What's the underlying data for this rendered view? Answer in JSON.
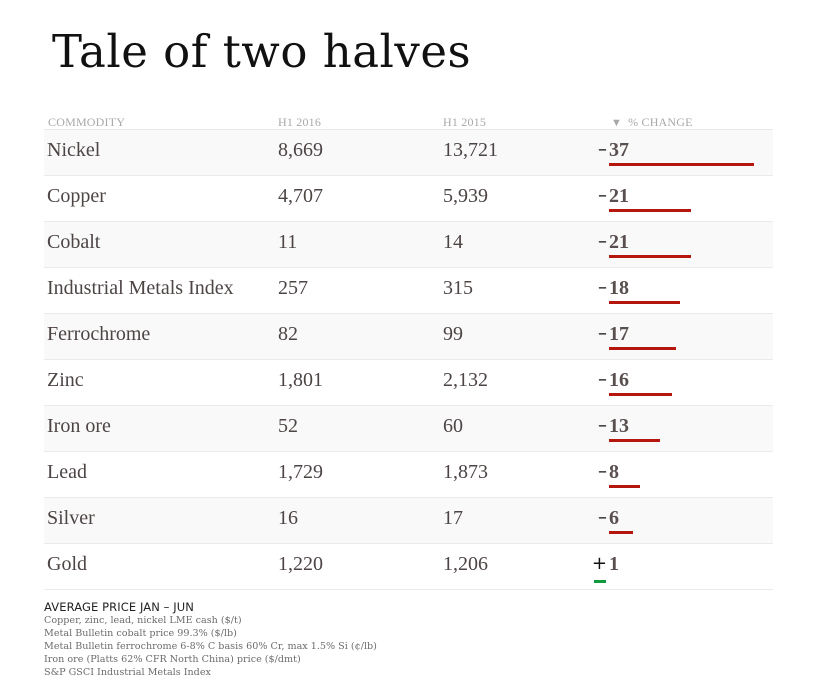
{
  "title": "Tale of two halves",
  "table": {
    "headers": {
      "commodity": "COMMODITY",
      "h1_2016": "H1 2016",
      "h1_2015": "H1 2015",
      "change": "% CHANGE",
      "sort_icon": "▼"
    },
    "rows": [
      {
        "commodity": "Nickel",
        "h1_2016": "8,669",
        "h1_2015": "13,721",
        "sign": "–",
        "change": "37"
      },
      {
        "commodity": "Copper",
        "h1_2016": "4,707",
        "h1_2015": "5,939",
        "sign": "–",
        "change": "21"
      },
      {
        "commodity": "Cobalt",
        "h1_2016": "11",
        "h1_2015": "14",
        "sign": "–",
        "change": "21"
      },
      {
        "commodity": "Industrial Metals Index",
        "h1_2016": "257",
        "h1_2015": "315",
        "sign": "–",
        "change": "18"
      },
      {
        "commodity": "Ferrochrome",
        "h1_2016": "82",
        "h1_2015": "99",
        "sign": "–",
        "change": "17"
      },
      {
        "commodity": "Zinc",
        "h1_2016": "1,801",
        "h1_2015": "2,132",
        "sign": "–",
        "change": "16"
      },
      {
        "commodity": "Iron ore",
        "h1_2016": "52",
        "h1_2015": "60",
        "sign": "–",
        "change": "13"
      },
      {
        "commodity": "Lead",
        "h1_2016": "1,729",
        "h1_2015": "1,873",
        "sign": "–",
        "change": "8"
      },
      {
        "commodity": "Silver",
        "h1_2016": "16",
        "h1_2015": "17",
        "sign": "–",
        "change": "6"
      },
      {
        "commodity": "Gold",
        "h1_2016": "1,220",
        "h1_2015": "1,206",
        "sign": "+",
        "change": "1"
      }
    ]
  },
  "colors": {
    "negative_bar": "#b5160e",
    "positive_bar": "#129a3a",
    "alt_row": "#f9f9f9"
  },
  "notes": {
    "heading": "AVERAGE PRICE JAN – JUN",
    "lines": [
      "Copper, zinc, lead, nickel LME cash ($/t)",
      "Metal Bulletin cobalt price 99.3% ($/lb)",
      "Metal Bulletin ferrochrome 6-8% C basis 60% Cr, max 1.5% Si (¢/lb)",
      "Iron ore (Platts 62% CFR North China) price ($/dmt)",
      "S&P GSCI Industrial Metals Index"
    ]
  },
  "chart_data": {
    "type": "table",
    "title": "Tale of two halves",
    "subtitle": "Average price Jan – Jun",
    "columns": [
      "Commodity",
      "H1 2016",
      "H1 2015",
      "% Change"
    ],
    "categories": [
      "Nickel",
      "Copper",
      "Cobalt",
      "Industrial Metals Index",
      "Ferrochrome",
      "Zinc",
      "Iron ore",
      "Lead",
      "Silver",
      "Gold"
    ],
    "series": [
      {
        "name": "H1 2016",
        "values": [
          8669,
          4707,
          11,
          257,
          82,
          1801,
          52,
          1729,
          16,
          1220
        ]
      },
      {
        "name": "H1 2015",
        "values": [
          13721,
          5939,
          14,
          315,
          99,
          2132,
          60,
          1873,
          17,
          1206
        ]
      },
      {
        "name": "% Change",
        "values": [
          -37,
          -21,
          -21,
          -18,
          -17,
          -16,
          -13,
          -8,
          -6,
          1
        ]
      }
    ],
    "sort": {
      "column": "% Change",
      "direction": "descending magnitude"
    },
    "bar_column": "% Change",
    "bar_colors": {
      "negative": "#b5160e",
      "positive": "#129a3a"
    },
    "footnotes": [
      "Copper, zinc, lead, nickel LME cash ($/t)",
      "Metal Bulletin cobalt price 99.3% ($/lb)",
      "Metal Bulletin ferrochrome 6-8% C basis 60% Cr, max 1.5% Si (¢/lb)",
      "Iron ore (Platts 62% CFR North China) price ($/dmt)",
      "S&P GSCI Industrial Metals Index"
    ]
  }
}
